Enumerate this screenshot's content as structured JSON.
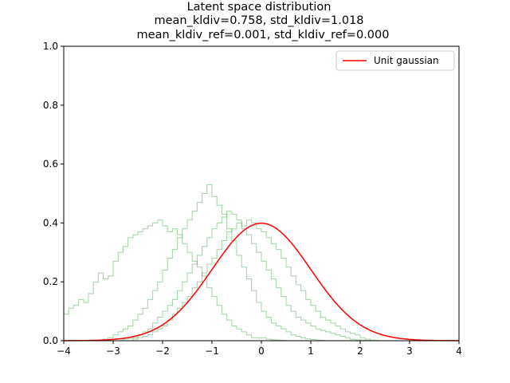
{
  "chart_data": {
    "type": "line",
    "title_lines": [
      "Latent space distribution",
      "mean_kldiv=0.758, std_kldiv=1.018",
      "mean_kldiv_ref=0.001, std_kldiv_ref=0.000"
    ],
    "xlabel": "",
    "ylabel": "",
    "xlim": [
      -4,
      4
    ],
    "ylim": [
      0,
      1.0
    ],
    "xticks": [
      -4,
      -3,
      -2,
      -1,
      0,
      1,
      2,
      3,
      4
    ],
    "yticks": [
      0.0,
      0.2,
      0.4,
      0.6,
      0.8,
      1.0
    ],
    "ytick_labels": [
      "0.0",
      "0.2",
      "0.4",
      "0.6",
      "0.8",
      "1.0"
    ],
    "grid": false,
    "legend_position": "top-right",
    "reference_curve": {
      "name": "Unit gaussian",
      "color": "#ff0000",
      "function": "standard_normal_pdf",
      "x_range": [
        -4,
        4
      ]
    },
    "histograms": [
      {
        "color": "#2ca02c",
        "opacity": 0.45,
        "x_start": -4.0,
        "bin_width": 0.1,
        "values": [
          0.09,
          0.11,
          0.12,
          0.14,
          0.13,
          0.16,
          0.2,
          0.23,
          0.21,
          0.22,
          0.27,
          0.3,
          0.32,
          0.35,
          0.36,
          0.37,
          0.38,
          0.39,
          0.4,
          0.41,
          0.39,
          0.37,
          0.38,
          0.36,
          0.33,
          0.3,
          0.27,
          0.25,
          0.22,
          0.18,
          0.15,
          0.12,
          0.09,
          0.07,
          0.05,
          0.04,
          0.03,
          0.02,
          0.01,
          0.01,
          0.01,
          0.005,
          0.003,
          0.002,
          0.001,
          0.0
        ]
      },
      {
        "color": "#2ca02c",
        "opacity": 0.45,
        "x_start": -3.2,
        "bin_width": 0.1,
        "values": [
          0.005,
          0.01,
          0.02,
          0.03,
          0.04,
          0.05,
          0.07,
          0.09,
          0.11,
          0.14,
          0.17,
          0.2,
          0.24,
          0.28,
          0.31,
          0.35,
          0.38,
          0.41,
          0.44,
          0.47,
          0.5,
          0.53,
          0.49,
          0.46,
          0.43,
          0.38,
          0.34,
          0.29,
          0.25,
          0.21,
          0.17,
          0.13,
          0.1,
          0.08,
          0.06,
          0.05,
          0.04,
          0.03,
          0.02,
          0.015,
          0.01,
          0.006,
          0.004,
          0.002,
          0.001
        ]
      },
      {
        "color": "#2ca02c",
        "opacity": 0.45,
        "x_start": -2.8,
        "bin_width": 0.1,
        "values": [
          0.005,
          0.008,
          0.01,
          0.02,
          0.03,
          0.04,
          0.06,
          0.08,
          0.1,
          0.12,
          0.14,
          0.17,
          0.2,
          0.23,
          0.26,
          0.29,
          0.32,
          0.35,
          0.38,
          0.4,
          0.42,
          0.44,
          0.43,
          0.41,
          0.38,
          0.36,
          0.33,
          0.3,
          0.27,
          0.24,
          0.21,
          0.18,
          0.15,
          0.12,
          0.1,
          0.08,
          0.07,
          0.06,
          0.05,
          0.04,
          0.035,
          0.03,
          0.025,
          0.02,
          0.015,
          0.01,
          0.005,
          0.003,
          0.002,
          0.001
        ]
      },
      {
        "color": "#2ca02c",
        "opacity": 0.45,
        "x_start": -2.6,
        "bin_width": 0.1,
        "values": [
          0.005,
          0.01,
          0.015,
          0.02,
          0.03,
          0.04,
          0.05,
          0.07,
          0.09,
          0.11,
          0.13,
          0.15,
          0.18,
          0.2,
          0.23,
          0.26,
          0.28,
          0.31,
          0.34,
          0.37,
          0.38,
          0.4,
          0.39,
          0.41,
          0.4,
          0.38,
          0.37,
          0.35,
          0.33,
          0.31,
          0.28,
          0.25,
          0.22,
          0.19,
          0.17,
          0.14,
          0.12,
          0.1,
          0.08,
          0.07,
          0.06,
          0.05,
          0.04,
          0.03,
          0.025,
          0.02,
          0.01,
          0.005,
          0.002,
          0.001
        ]
      }
    ]
  }
}
